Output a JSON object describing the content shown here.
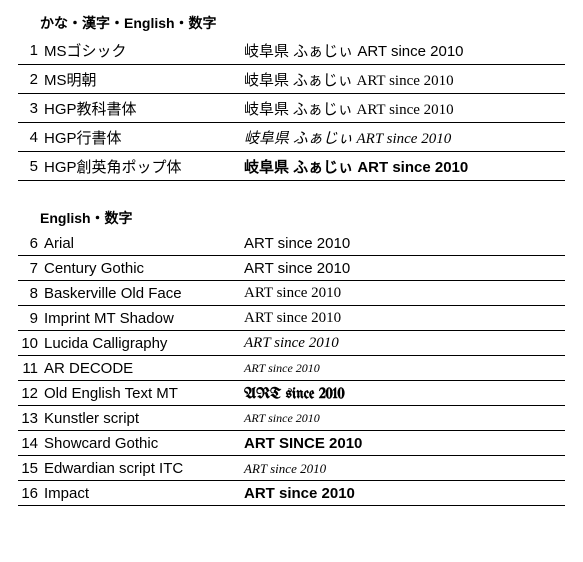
{
  "sections": [
    {
      "header": "かな・漢字・English・数字",
      "rows": [
        {
          "num": "1",
          "name": "MSゴシック",
          "sample": "岐阜県 ふぁじぃ ART since 2010",
          "cls": "f1"
        },
        {
          "num": "2",
          "name": "MS明朝",
          "sample": "岐阜県 ふぁじぃ ART since 2010",
          "cls": "f2"
        },
        {
          "num": "3",
          "name": "HGP教科書体",
          "sample": "岐阜県 ふぁじぃ ART since 2010",
          "cls": "f3"
        },
        {
          "num": "4",
          "name": "HGP行書体",
          "sample": "岐阜県 ふぁじぃ ART since 2010",
          "cls": "f4"
        },
        {
          "num": "5",
          "name": "HGP創英角ポップ体",
          "sample": "岐阜県 ふぁじぃ ART since 2010",
          "cls": "f5"
        }
      ]
    },
    {
      "header": "English・数字",
      "rows": [
        {
          "num": "6",
          "name": "Arial",
          "sample": "ART since 2010",
          "cls": "f6"
        },
        {
          "num": "7",
          "name": "Century Gothic",
          "sample": "ART since 2010",
          "cls": "f7"
        },
        {
          "num": "8",
          "name": "Baskerville Old Face",
          "sample": "ART since 2010",
          "cls": "f8"
        },
        {
          "num": "9",
          "name": "Imprint MT Shadow",
          "sample": "ART since 2010",
          "cls": "f9"
        },
        {
          "num": "10",
          "name": "Lucida Calligraphy",
          "sample": "ART since 2010",
          "cls": "f10"
        },
        {
          "num": "11",
          "name": "AR DECODE",
          "sample": "ART since 2010",
          "cls": "f11"
        },
        {
          "num": "12",
          "name": "Old English Text MT",
          "sample": "ART since 2010",
          "cls": "f12"
        },
        {
          "num": "13",
          "name": "Kunstler script",
          "sample": "ART since 2010",
          "cls": "f13"
        },
        {
          "num": "14",
          "name": "Showcard Gothic",
          "sample": "ART SINCE 2010",
          "cls": "f14"
        },
        {
          "num": "15",
          "name": "Edwardian script ITC",
          "sample": "ART since 2010",
          "cls": "f15"
        },
        {
          "num": "16",
          "name": "Impact",
          "sample": "ART since 2010",
          "cls": "f16"
        }
      ]
    }
  ],
  "colors": {
    "background": "#ffffff",
    "text": "#000000",
    "border": "#000000"
  }
}
